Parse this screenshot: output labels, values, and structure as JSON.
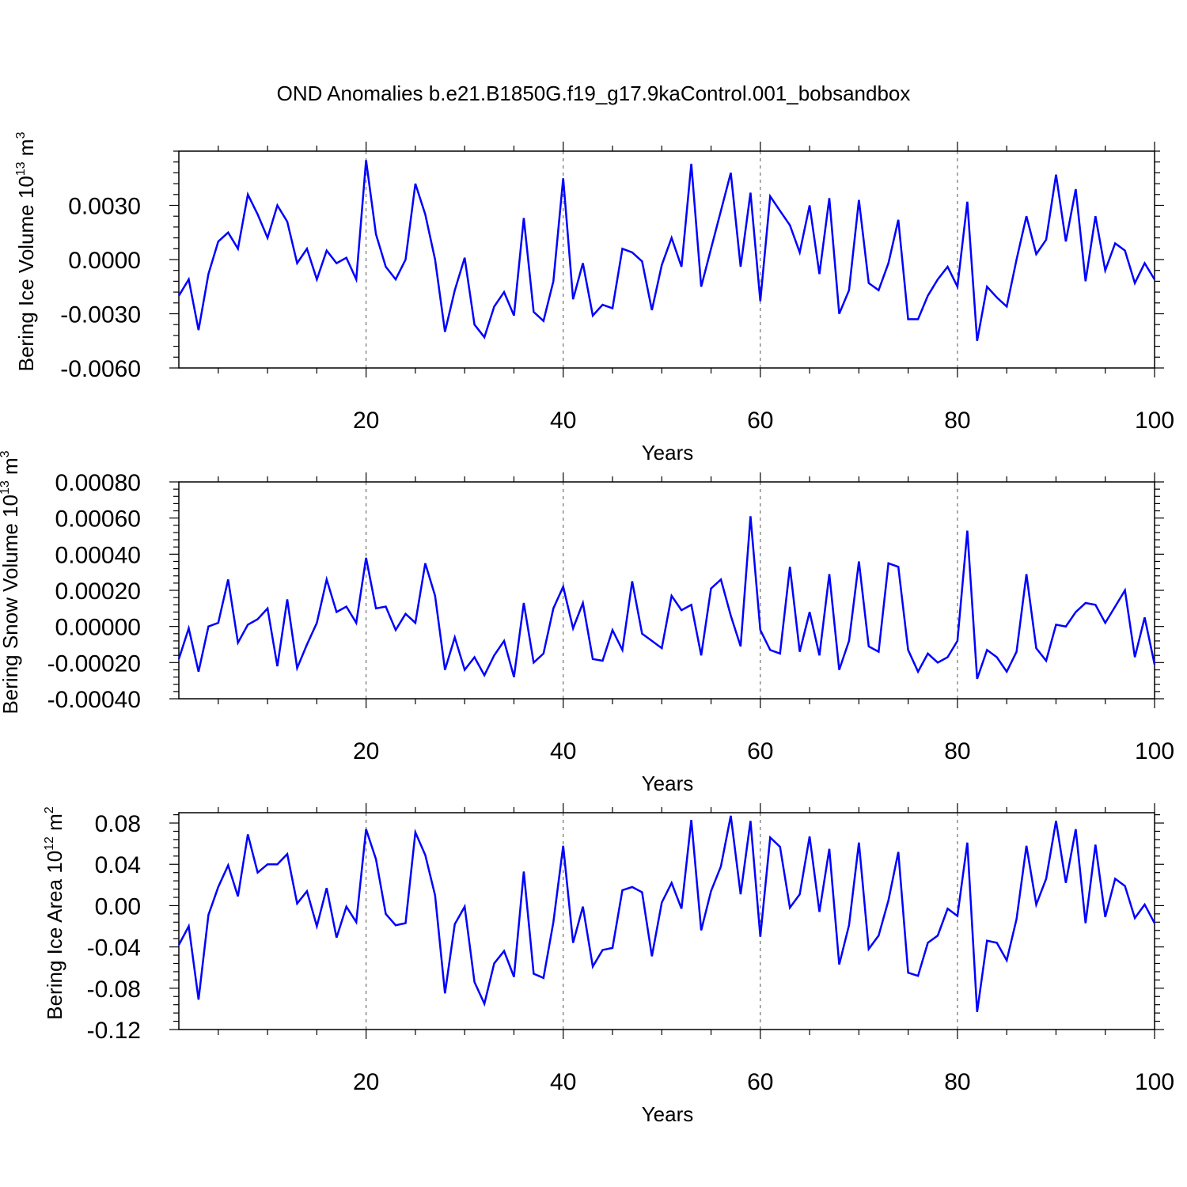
{
  "title": "OND Anomalies b.e21.B1850G.f19_g17.9kaControl.001_bobsandbox",
  "colors": {
    "line": "#0000ff",
    "axis": "#000000",
    "grid": "#555555"
  },
  "chart_data": [
    {
      "type": "line",
      "ylabel": {
        "main": "Bering Ice Volume 10",
        "exp": "13",
        "unit": " m",
        "unit_exp": "3"
      },
      "xlabel": "Years",
      "xlim": [
        1,
        100
      ],
      "ylim": [
        -0.006,
        0.006
      ],
      "xticks": [
        20,
        40,
        60,
        80,
        100
      ],
      "xtick_labels": [
        "20",
        "40",
        "60",
        "80",
        "100"
      ],
      "yticks": [
        -0.006,
        -0.003,
        0.0,
        0.003
      ],
      "ytick_labels": [
        "-0.0060",
        "-0.0030",
        "0.0000",
        "0.0030"
      ],
      "grid_x": [
        20,
        40,
        60,
        80
      ],
      "x_start": 1,
      "values": [
        -0.002,
        -0.0011,
        -0.0039,
        -0.0008,
        0.001,
        0.0015,
        0.0006,
        0.0036,
        0.0025,
        0.0012,
        0.003,
        0.0021,
        -0.0002,
        0.0006,
        -0.0011,
        0.0005,
        -0.0002,
        0.0001,
        -0.0011,
        0.0055,
        0.0014,
        -0.0004,
        -0.0011,
        0.0,
        0.0042,
        0.0025,
        0.0,
        -0.004,
        -0.0017,
        0.0001,
        -0.0036,
        -0.0043,
        -0.0026,
        -0.0018,
        -0.0031,
        0.0023,
        -0.0029,
        -0.0034,
        -0.0012,
        0.0045,
        -0.0022,
        -0.0002,
        -0.0031,
        -0.0025,
        -0.0027,
        0.0006,
        0.0004,
        -0.0001,
        -0.0028,
        -0.0003,
        0.0012,
        -0.0004,
        0.0053,
        -0.0015,
        0.0006,
        0.0027,
        0.0048,
        -0.0004,
        0.0037,
        -0.0023,
        0.0035,
        0.0027,
        0.0019,
        0.0004,
        0.003,
        -0.0008,
        0.0034,
        -0.003,
        -0.0017,
        0.0033,
        -0.0013,
        -0.0017,
        -0.0002,
        0.0022,
        -0.0033,
        -0.0033,
        -0.002,
        -0.0011,
        -0.0004,
        -0.0015,
        0.0032,
        -0.0045,
        -0.0015,
        -0.0021,
        -0.0026,
        0.0,
        0.0024,
        0.0003,
        0.0011,
        0.0047,
        0.001,
        0.0039,
        -0.0012,
        0.0024,
        -0.0006,
        0.0009,
        0.0005,
        -0.0013,
        -0.0002,
        -0.0011
      ]
    },
    {
      "type": "line",
      "ylabel": {
        "main": "Bering Snow Volume 10",
        "exp": "13",
        "unit": " m",
        "unit_exp": "3"
      },
      "xlabel": "Years",
      "xlim": [
        1,
        100
      ],
      "ylim": [
        -0.0004,
        0.0008
      ],
      "xticks": [
        20,
        40,
        60,
        80,
        100
      ],
      "xtick_labels": [
        "20",
        "40",
        "60",
        "80",
        "100"
      ],
      "yticks": [
        -0.0004,
        -0.0002,
        0.0,
        0.0002,
        0.0004,
        0.0006,
        0.0008
      ],
      "ytick_labels": [
        "-0.00040",
        "-0.00020",
        "0.00000",
        "0.00020",
        "0.00040",
        "0.00060",
        "0.00080"
      ],
      "grid_x": [
        20,
        40,
        60,
        80
      ],
      "x_start": 1,
      "values": [
        -0.00018,
        -1e-05,
        -0.00025,
        0.0,
        2e-05,
        0.00026,
        -9e-05,
        1e-05,
        4e-05,
        0.0001,
        -0.00022,
        0.00015,
        -0.00023,
        -0.0001,
        2e-05,
        0.00026,
        8e-05,
        0.00011,
        2e-05,
        0.00038,
        0.0001,
        0.00011,
        -2e-05,
        7e-05,
        2e-05,
        0.00035,
        0.00017,
        -0.00024,
        -6e-05,
        -0.00024,
        -0.00017,
        -0.00027,
        -0.00016,
        -8e-05,
        -0.00028,
        0.00013,
        -0.0002,
        -0.00015,
        0.0001,
        0.00022,
        -1e-05,
        0.00013,
        -0.00018,
        -0.00019,
        -2e-05,
        -0.00013,
        0.00025,
        -4e-05,
        -8e-05,
        -0.00012,
        0.00017,
        9e-05,
        0.00012,
        -0.00016,
        0.00021,
        0.00026,
        6e-05,
        -0.00011,
        0.00061,
        -2e-05,
        -0.00013,
        -0.00015,
        0.00033,
        -0.00014,
        8e-05,
        -0.00016,
        0.00029,
        -0.00024,
        -8e-05,
        0.00036,
        -0.00011,
        -0.00014,
        0.00035,
        0.00033,
        -0.00013,
        -0.00025,
        -0.00015,
        -0.0002,
        -0.00017,
        -8e-05,
        0.00053,
        -0.00029,
        -0.00013,
        -0.00017,
        -0.00025,
        -0.00014,
        0.00029,
        -0.00012,
        -0.00019,
        1e-05,
        0.0,
        8e-05,
        0.00013,
        0.00012,
        2e-05,
        0.00011,
        0.0002,
        -0.00017,
        5e-05,
        -0.00021
      ]
    },
    {
      "type": "line",
      "ylabel": {
        "main": "Bering Ice Area 10",
        "exp": "12",
        "unit": " m",
        "unit_exp": "2"
      },
      "xlabel": "Years",
      "xlim": [
        1,
        100
      ],
      "ylim": [
        -0.12,
        0.09
      ],
      "xticks": [
        20,
        40,
        60,
        80,
        100
      ],
      "xtick_labels": [
        "20",
        "40",
        "60",
        "80",
        "100"
      ],
      "yticks": [
        -0.12,
        -0.08,
        -0.04,
        0.0,
        0.04,
        0.08
      ],
      "ytick_labels": [
        "-0.12",
        "-0.08",
        "-0.04",
        "0.00",
        "0.04",
        "0.08"
      ],
      "grid_x": [
        20,
        40,
        60,
        80
      ],
      "x_start": 1,
      "values": [
        -0.038,
        -0.02,
        -0.091,
        -0.009,
        0.018,
        0.039,
        0.009,
        0.069,
        0.032,
        0.04,
        0.04,
        0.05,
        0.002,
        0.014,
        -0.02,
        0.017,
        -0.031,
        -0.001,
        -0.016,
        0.074,
        0.045,
        -0.008,
        -0.019,
        -0.017,
        0.071,
        0.049,
        0.01,
        -0.085,
        -0.018,
        -0.001,
        -0.074,
        -0.095,
        -0.056,
        -0.044,
        -0.069,
        0.033,
        -0.066,
        -0.07,
        -0.016,
        0.058,
        -0.036,
        -0.001,
        -0.059,
        -0.043,
        -0.041,
        0.015,
        0.018,
        0.013,
        -0.049,
        0.003,
        0.022,
        -0.003,
        0.083,
        -0.024,
        0.014,
        0.038,
        0.087,
        0.011,
        0.082,
        -0.03,
        0.066,
        0.057,
        -0.002,
        0.011,
        0.067,
        -0.006,
        0.055,
        -0.057,
        -0.019,
        0.061,
        -0.042,
        -0.029,
        0.005,
        0.052,
        -0.065,
        -0.068,
        -0.036,
        -0.029,
        -0.003,
        -0.01,
        0.061,
        -0.103,
        -0.034,
        -0.036,
        -0.053,
        -0.013,
        0.058,
        0.001,
        0.026,
        0.082,
        0.022,
        0.074,
        -0.017,
        0.059,
        -0.011,
        0.026,
        0.019,
        -0.012,
        0.001,
        -0.017
      ]
    }
  ]
}
